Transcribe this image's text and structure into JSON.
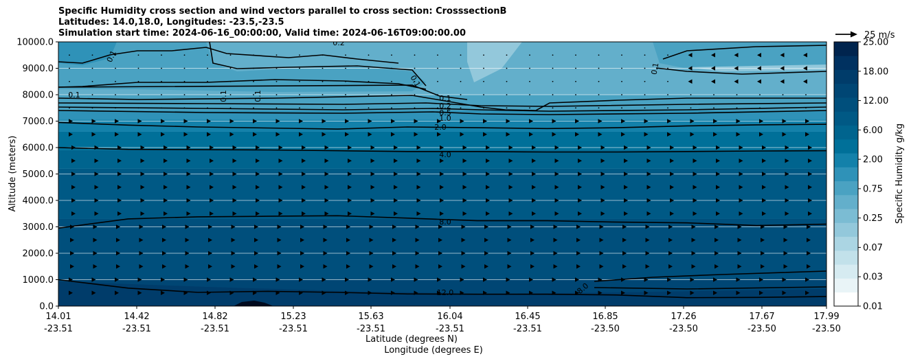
{
  "title_lines": [
    "Specific Humidity cross section and wind vectors parallel to cross section: CrosssectionB",
    "Latitudes: 14.0,18.0, Longitudes: -23.5,-23.5",
    "Simulation start time: 2024-06-16_00:00:00, Valid time: 2024-06-16T09:00:00.00"
  ],
  "chart_data": {
    "type": "heatmap",
    "title": "Specific Humidity cross section and wind vectors parallel to cross section: CrosssectionB",
    "ylabel": "Altitude (meters)",
    "xlabel_lines": [
      "Latitude (degrees N)",
      "Longitude (degrees E)"
    ],
    "ylim": [
      0,
      10000
    ],
    "y_ticks": [
      "0.0",
      "1000.0",
      "2000.0",
      "3000.0",
      "4000.0",
      "5000.0",
      "6000.0",
      "7000.0",
      "8000.0",
      "9000.0",
      "10000.0"
    ],
    "x_ticks": [
      {
        "lat": "14.01",
        "lon": "-23.51"
      },
      {
        "lat": "14.42",
        "lon": "-23.51"
      },
      {
        "lat": "14.82",
        "lon": "-23.51"
      },
      {
        "lat": "15.23",
        "lon": "-23.51"
      },
      {
        "lat": "15.63",
        "lon": "-23.51"
      },
      {
        "lat": "16.04",
        "lon": "-23.51"
      },
      {
        "lat": "16.45",
        "lon": "-23.51"
      },
      {
        "lat": "16.85",
        "lon": "-23.50"
      },
      {
        "lat": "17.26",
        "lon": "-23.50"
      },
      {
        "lat": "17.67",
        "lon": "-23.50"
      },
      {
        "lat": "17.99",
        "lon": "-23.50"
      }
    ],
    "grid": "horizontal",
    "colorbar": {
      "label": "Specific Humidity g/kg",
      "tick_labels": [
        "0.01",
        "0.03",
        "0.07",
        "0.25",
        "0.75",
        "2.00",
        "6.00",
        "12.00",
        "18.00",
        "25.00"
      ],
      "levels": [
        0.01,
        0.02,
        0.03,
        0.05,
        0.07,
        0.1,
        0.25,
        0.5,
        0.75,
        1.0,
        2.0,
        4.0,
        6.0,
        8.0,
        12.0,
        15.0,
        18.0,
        21.0,
        25.0
      ],
      "colors": [
        "#ffffff",
        "#e9f4f7",
        "#d6ebf1",
        "#c2e1ea",
        "#abd5e3",
        "#93c8db",
        "#7bbcd3",
        "#63afcb",
        "#4aa2c2",
        "#2f92b8",
        "#1381aa",
        "#007099",
        "#00648e",
        "#005985",
        "#004f7c",
        "#004674",
        "#003c6a",
        "#003160",
        "#00244e"
      ]
    },
    "contour_labels": [
      "0.1",
      "0.2",
      "0.1",
      "0.1",
      "0.1",
      "0.1",
      "0.1",
      "0.1",
      "0.2",
      "0.5",
      "1.0",
      "2.0",
      "4.0",
      "8.0",
      "8.0",
      "12.0"
    ],
    "contours": [
      {
        "level": "4.0",
        "alt": [
          6000,
          5930,
          5920,
          5910,
          5880,
          5850,
          5850,
          5830,
          5830,
          5850,
          5870,
          5880
        ]
      },
      {
        "level": "8.0",
        "alt": [
          2950,
          3300,
          3380,
          3400,
          3420,
          3330,
          3230,
          3230,
          3180,
          3150,
          3050,
          3100
        ]
      },
      {
        "level": "2.0",
        "alt": [
          6950,
          6850,
          6780,
          6740,
          6700,
          6780,
          6750,
          6720,
          6750,
          6820,
          6860,
          6880
        ]
      },
      {
        "level": "12.0",
        "alt": [
          1000,
          680,
          520,
          560,
          520,
          460,
          450,
          450,
          420,
          320,
          330,
          360
        ]
      }
    ],
    "wind_key": "25 m/s"
  }
}
